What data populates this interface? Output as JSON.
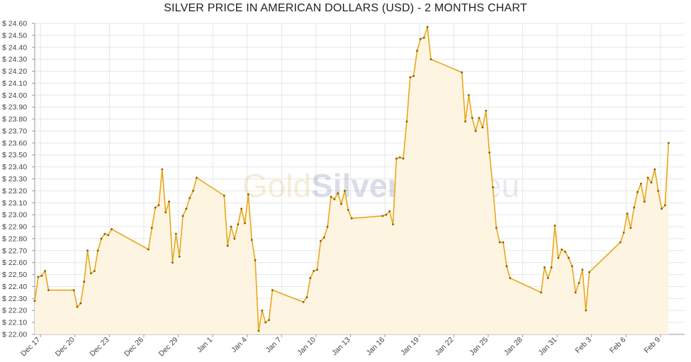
{
  "chart_data": {
    "type": "area",
    "title": "SILVER PRICE IN AMERICAN DOLLARS (USD) - 2 MONTHS CHART",
    "xlabel": "",
    "ylabel": "",
    "ylim": [
      22.0,
      24.6
    ],
    "ytick_prefix": "$ ",
    "yticks": [
      22.0,
      22.1,
      22.2,
      22.3,
      22.4,
      22.5,
      22.6,
      22.7,
      22.8,
      22.9,
      23.0,
      23.1,
      23.2,
      23.3,
      23.4,
      23.5,
      23.6,
      23.7,
      23.8,
      23.9,
      24.0,
      24.1,
      24.2,
      24.3,
      24.4,
      24.5,
      24.6
    ],
    "xlim": [
      0,
      56.6
    ],
    "xticks": [
      {
        "x": 0.5,
        "label": "Dec 17"
      },
      {
        "x": 3.5,
        "label": "Dec 20"
      },
      {
        "x": 6.5,
        "label": "Dec 23"
      },
      {
        "x": 9.5,
        "label": "Dec 26"
      },
      {
        "x": 12.5,
        "label": "Dec 29"
      },
      {
        "x": 15.5,
        "label": "Jan 1"
      },
      {
        "x": 18.5,
        "label": "Jan 4"
      },
      {
        "x": 21.5,
        "label": "Jan 7"
      },
      {
        "x": 24.5,
        "label": "Jan 10"
      },
      {
        "x": 27.5,
        "label": "Jan 13"
      },
      {
        "x": 30.5,
        "label": "Jan 16"
      },
      {
        "x": 33.5,
        "label": "Jan 19"
      },
      {
        "x": 36.5,
        "label": "Jan 22"
      },
      {
        "x": 39.5,
        "label": "Jan 25"
      },
      {
        "x": 42.5,
        "label": "Jan 28"
      },
      {
        "x": 45.5,
        "label": "Jan 31"
      },
      {
        "x": 48.5,
        "label": "Feb 3"
      },
      {
        "x": 51.5,
        "label": "Feb 6"
      },
      {
        "x": 54.5,
        "label": "Feb 9"
      }
    ],
    "grid": true,
    "watermark": {
      "part1": "Gold",
      "part2": "Silver",
      "part3": "Price.eu"
    },
    "colors": {
      "line": "#e8a71a",
      "fill": "#fdf5e1",
      "grid": "#e6e6e6",
      "axis": "#999999"
    },
    "series": [
      {
        "points": [
          [
            0.0,
            22.28
          ],
          [
            0.3,
            22.48
          ],
          [
            0.6,
            22.49
          ],
          [
            0.9,
            22.53
          ],
          [
            1.2,
            22.37
          ],
          [
            3.4,
            22.37
          ],
          [
            3.7,
            22.23
          ],
          [
            4.0,
            22.26
          ],
          [
            4.3,
            22.44
          ],
          [
            4.6,
            22.7
          ],
          [
            4.9,
            22.51
          ],
          [
            5.2,
            22.53
          ],
          [
            5.5,
            22.7
          ],
          [
            5.8,
            22.8
          ],
          [
            6.1,
            22.84
          ],
          [
            6.4,
            22.83
          ],
          [
            6.7,
            22.88
          ],
          [
            9.9,
            22.71
          ],
          [
            10.2,
            22.89
          ],
          [
            10.5,
            23.06
          ],
          [
            10.8,
            23.08
          ],
          [
            11.1,
            23.38
          ],
          [
            11.4,
            23.02
          ],
          [
            11.7,
            23.11
          ],
          [
            12.0,
            22.6
          ],
          [
            12.3,
            22.84
          ],
          [
            12.6,
            22.65
          ],
          [
            12.9,
            22.99
          ],
          [
            13.2,
            23.05
          ],
          [
            13.5,
            23.14
          ],
          [
            13.8,
            23.2
          ],
          [
            14.1,
            23.31
          ],
          [
            16.5,
            23.16
          ],
          [
            16.8,
            22.74
          ],
          [
            17.1,
            22.9
          ],
          [
            17.4,
            22.8
          ],
          [
            17.7,
            22.92
          ],
          [
            18.0,
            23.05
          ],
          [
            18.3,
            22.93
          ],
          [
            18.6,
            23.17
          ],
          [
            18.9,
            22.79
          ],
          [
            19.2,
            22.62
          ],
          [
            19.5,
            22.03
          ],
          [
            19.8,
            22.2
          ],
          [
            20.1,
            22.1
          ],
          [
            20.4,
            22.12
          ],
          [
            20.7,
            22.37
          ],
          [
            23.4,
            22.27
          ],
          [
            23.7,
            22.31
          ],
          [
            24.0,
            22.47
          ],
          [
            24.3,
            22.53
          ],
          [
            24.6,
            22.54
          ],
          [
            24.9,
            22.78
          ],
          [
            25.2,
            22.81
          ],
          [
            25.5,
            22.9
          ],
          [
            25.8,
            23.15
          ],
          [
            26.1,
            23.13
          ],
          [
            26.4,
            23.18
          ],
          [
            26.7,
            23.09
          ],
          [
            27.0,
            23.2
          ],
          [
            27.3,
            23.04
          ],
          [
            27.6,
            22.97
          ],
          [
            30.3,
            22.99
          ],
          [
            30.6,
            23.0
          ],
          [
            30.9,
            23.03
          ],
          [
            31.2,
            22.92
          ],
          [
            31.5,
            23.47
          ],
          [
            31.8,
            23.48
          ],
          [
            32.1,
            23.47
          ],
          [
            32.4,
            23.78
          ],
          [
            32.7,
            24.15
          ],
          [
            33.0,
            24.16
          ],
          [
            33.3,
            24.37
          ],
          [
            33.6,
            24.47
          ],
          [
            33.9,
            24.48
          ],
          [
            34.2,
            24.57
          ],
          [
            34.5,
            24.3
          ],
          [
            37.2,
            24.19
          ],
          [
            37.5,
            23.78
          ],
          [
            37.8,
            24.0
          ],
          [
            38.1,
            23.81
          ],
          [
            38.4,
            23.7
          ],
          [
            38.7,
            23.81
          ],
          [
            39.0,
            23.73
          ],
          [
            39.3,
            23.87
          ],
          [
            39.6,
            23.52
          ],
          [
            39.9,
            23.23
          ],
          [
            40.2,
            22.89
          ],
          [
            40.5,
            22.77
          ],
          [
            40.8,
            22.77
          ],
          [
            41.1,
            22.57
          ],
          [
            41.4,
            22.47
          ],
          [
            44.1,
            22.35
          ],
          [
            44.4,
            22.56
          ],
          [
            44.7,
            22.47
          ],
          [
            45.0,
            22.56
          ],
          [
            45.3,
            22.91
          ],
          [
            45.6,
            22.64
          ],
          [
            45.9,
            22.71
          ],
          [
            46.2,
            22.69
          ],
          [
            46.5,
            22.64
          ],
          [
            46.8,
            22.57
          ],
          [
            47.1,
            22.35
          ],
          [
            47.4,
            22.43
          ],
          [
            47.7,
            22.54
          ],
          [
            48.0,
            22.2
          ],
          [
            48.3,
            22.52
          ],
          [
            51.0,
            22.77
          ],
          [
            51.3,
            22.85
          ],
          [
            51.6,
            23.01
          ],
          [
            51.9,
            22.89
          ],
          [
            52.2,
            23.06
          ],
          [
            52.5,
            23.19
          ],
          [
            52.8,
            23.26
          ],
          [
            53.1,
            23.11
          ],
          [
            53.4,
            23.31
          ],
          [
            53.7,
            23.27
          ],
          [
            54.0,
            23.38
          ],
          [
            54.3,
            23.2
          ],
          [
            54.6,
            23.05
          ],
          [
            54.9,
            23.08
          ],
          [
            55.2,
            23.6
          ]
        ]
      }
    ]
  }
}
